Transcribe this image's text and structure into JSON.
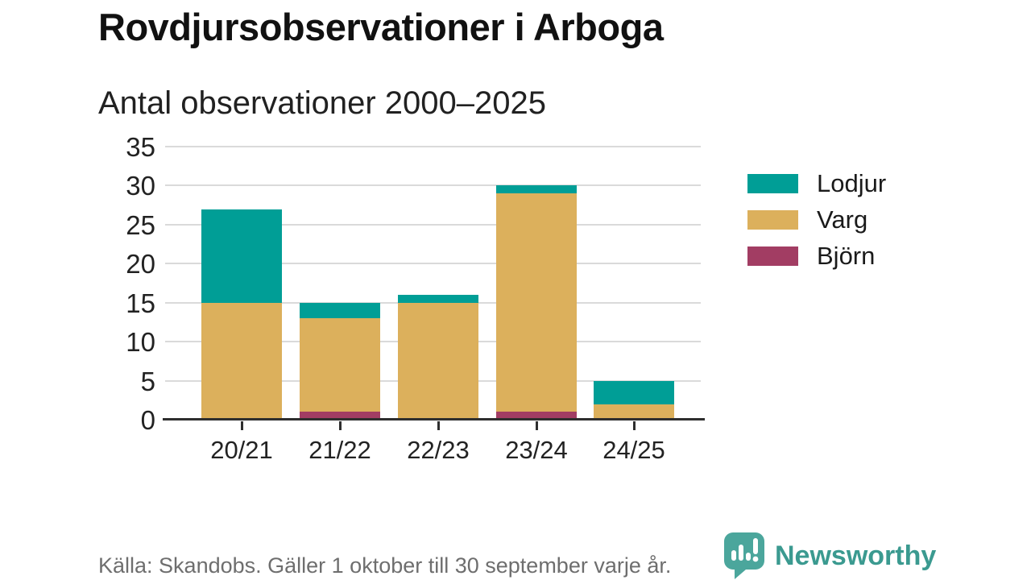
{
  "header": {
    "title": "Rovdjursobservationer i Arboga",
    "subtitle": "Antal observationer 2000–2025"
  },
  "chart_data": {
    "type": "bar",
    "stacked": true,
    "title": "Rovdjursobservationer i Arboga",
    "subtitle": "Antal observationer 2000–2025",
    "categories": [
      "20/21",
      "21/22",
      "22/23",
      "23/24",
      "24/25"
    ],
    "series": [
      {
        "name": "Lodjur",
        "color": "#009e96",
        "values": [
          12,
          2,
          1,
          1,
          3
        ]
      },
      {
        "name": "Varg",
        "color": "#dcb05c",
        "values": [
          15,
          12,
          15,
          28,
          2
        ]
      },
      {
        "name": "Björn",
        "color": "#a23d63",
        "values": [
          0,
          1,
          0,
          1,
          0
        ]
      }
    ],
    "stack_order": [
      "Björn",
      "Varg",
      "Lodjur"
    ],
    "totals": [
      27,
      15,
      16,
      30,
      5
    ],
    "xlabel": "",
    "ylabel": "",
    "ylim": [
      0,
      35
    ],
    "yticks": [
      0,
      5,
      10,
      15,
      20,
      25,
      30,
      35
    ],
    "grid": true,
    "legend_position": "right"
  },
  "colors": {
    "lodjur": "#009e96",
    "varg": "#dcb05c",
    "bjorn": "#a23d63",
    "gridline": "#dadada",
    "axis": "#2e2e2e",
    "brand_teal": "#3b9a90",
    "brand_icon_teal": "#4ba69c"
  },
  "footer": {
    "source": "Källa: Skandobs. Gäller 1 oktober till 30 september varje år.",
    "brand": "Newsworthy"
  }
}
